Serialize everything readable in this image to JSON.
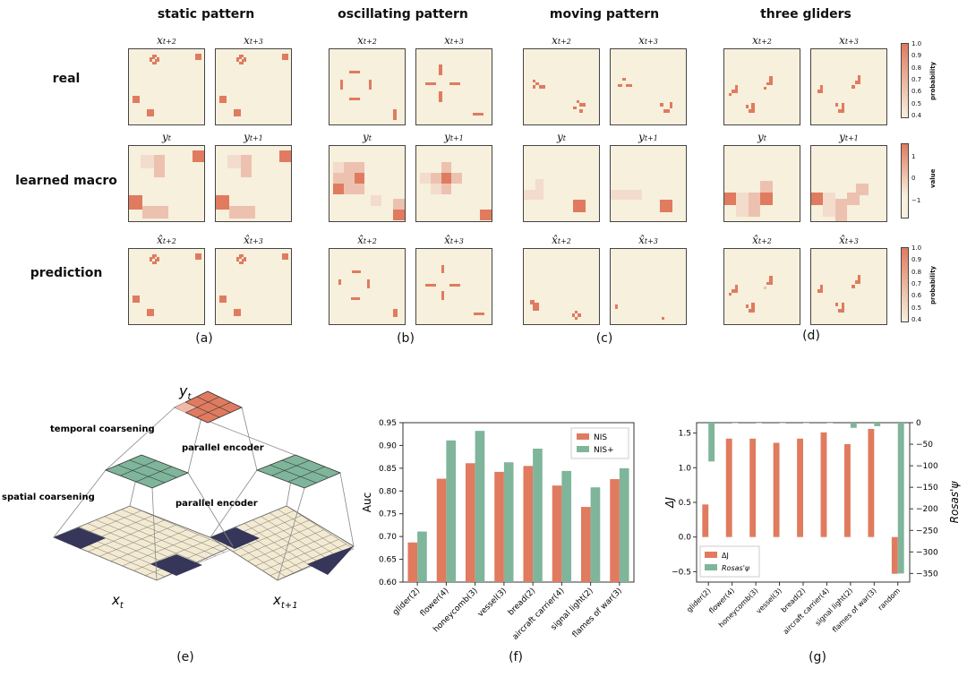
{
  "columns": [
    "static pattern",
    "oscillating pattern",
    "moving pattern",
    "three gliders"
  ],
  "rows": [
    "real",
    "learned macro",
    "prediction"
  ],
  "panel_labels": {
    "real": [
      {
        "b": "x",
        "s": "t+2"
      },
      {
        "b": "x",
        "s": "t+3"
      }
    ],
    "macro": [
      {
        "b": "y",
        "s": "t"
      },
      {
        "b": "y",
        "s": "t+1"
      }
    ],
    "pred": [
      {
        "b": "x̂",
        "s": "t+2"
      },
      {
        "b": "x̂",
        "s": "t+3"
      }
    ]
  },
  "letters": [
    "(a)",
    "(b)",
    "(c)",
    "(d)",
    "(e)",
    "(f)",
    "(g)"
  ],
  "colorbars": {
    "prob_label": "probability",
    "prob_ticks": [
      "1.0",
      "0.9",
      "0.8",
      "0.7",
      "0.6",
      "0.5",
      "0.4"
    ],
    "value_label": "value",
    "value_ticks": [
      "1",
      "0",
      "−1"
    ]
  },
  "diagram": {
    "y_label": "y",
    "y_sub": "t",
    "x_label": "x",
    "x_sub_left": "t",
    "x_sub_right": "t+1",
    "temporal": "temporal coarsening",
    "spatial": "spatial coarsening",
    "enc1": "parallel encoder",
    "enc2": "parallel encoder"
  },
  "chart_data": [
    {
      "type": "bar",
      "categories": [
        "glider(2)",
        "flower(4)",
        "honeycomb(3)",
        "vessel(3)",
        "bread(2)",
        "aircraft carrier(4)",
        "signal light(2)",
        "flames of war(3)"
      ],
      "series": [
        {
          "name": "NIS",
          "values": [
            0.687,
            0.827,
            0.861,
            0.842,
            0.855,
            0.812,
            0.765,
            0.826
          ],
          "color": "#e07b5f"
        },
        {
          "name": "NIS+",
          "values": [
            0.711,
            0.911,
            0.932,
            0.863,
            0.893,
            0.844,
            0.808,
            0.85
          ],
          "color": "#7fb59a"
        }
      ],
      "ylabel": "Auc",
      "ylim": [
        0.6,
        0.95
      ],
      "yticks": [
        "0.60",
        "0.65",
        "0.70",
        "0.75",
        "0.80",
        "0.85",
        "0.90",
        "0.95"
      ],
      "legend": "top-right"
    },
    {
      "type": "bar",
      "categories": [
        "glider(2)",
        "flower(4)",
        "honeycomb(3)",
        "vessel(3)",
        "bread(2)",
        "aircraft carrier(4)",
        "signal light(2)",
        "flames of war(3)",
        "random"
      ],
      "series": [
        {
          "name": "ΔJ",
          "axis": "left",
          "values": [
            0.47,
            1.42,
            1.42,
            1.36,
            1.42,
            1.51,
            1.34,
            1.56,
            -0.53
          ],
          "color": "#e07b5f"
        },
        {
          "name": "Rosas'ψ",
          "axis": "right",
          "values": [
            -90,
            0,
            0,
            0,
            0,
            0,
            -12,
            -8,
            -350
          ],
          "color": "#7fb59a"
        }
      ],
      "ylabel": "ΔJ",
      "ylabel_right": "Rosas'ψ",
      "ylim": [
        -0.65,
        1.65
      ],
      "ylim_right": [
        -370,
        0
      ],
      "yticks": [
        "−0.5",
        "0.0",
        "0.5",
        "1.0",
        "1.5"
      ],
      "yticks_right": [
        "0",
        "−50",
        "−100",
        "−150",
        "−200",
        "−250",
        "−300",
        "−350"
      ],
      "legend": "bottom-left"
    }
  ]
}
